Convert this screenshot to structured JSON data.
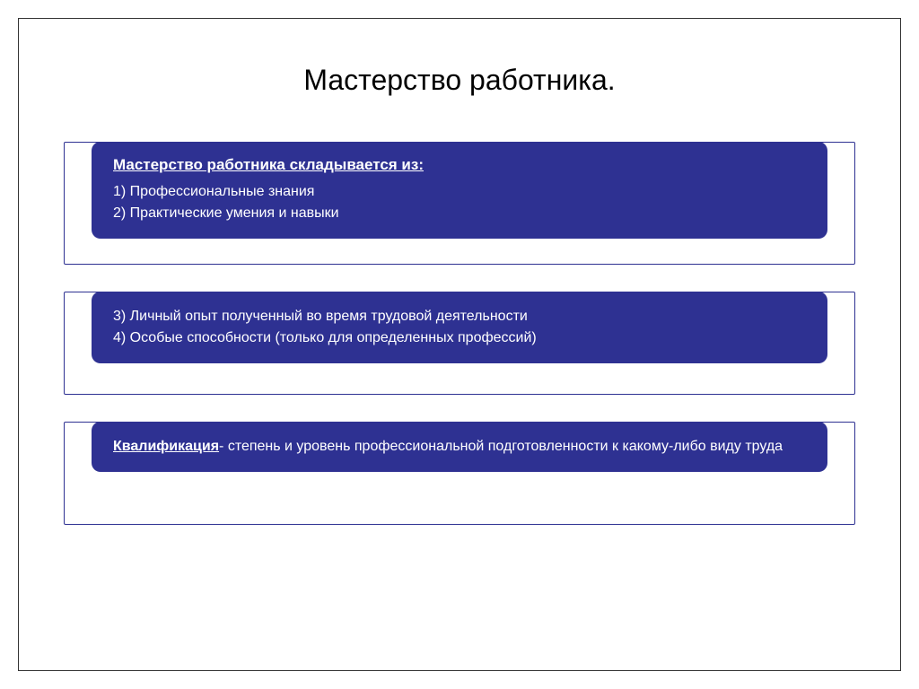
{
  "slide": {
    "title": "Мастерство работника.",
    "background_color": "#ffffff",
    "frame_border_color": "#333333",
    "card_bg_color": "#2e3192",
    "card_text_color": "#ffffff",
    "outer_border_color": "#2e3192",
    "card_border_radius": 10,
    "title_fontsize": 32,
    "body_fontsize": 16,
    "heading_fontsize": 17
  },
  "blocks": [
    {
      "heading": "Мастерство работника складывается из:",
      "lines": [
        "1) Профессиональные знания",
        "2) Практические умения и навыки"
      ]
    },
    {
      "heading": "",
      "lines": [
        "3) Личный опыт полученный во время трудовой деятельности",
        "4) Особые способности (только для определенных профессий)"
      ]
    },
    {
      "heading": "",
      "term": "Квалификация",
      "rest": "- степень и уровень профессиональной подготовленности к какому-либо виду труда",
      "lines": []
    }
  ]
}
